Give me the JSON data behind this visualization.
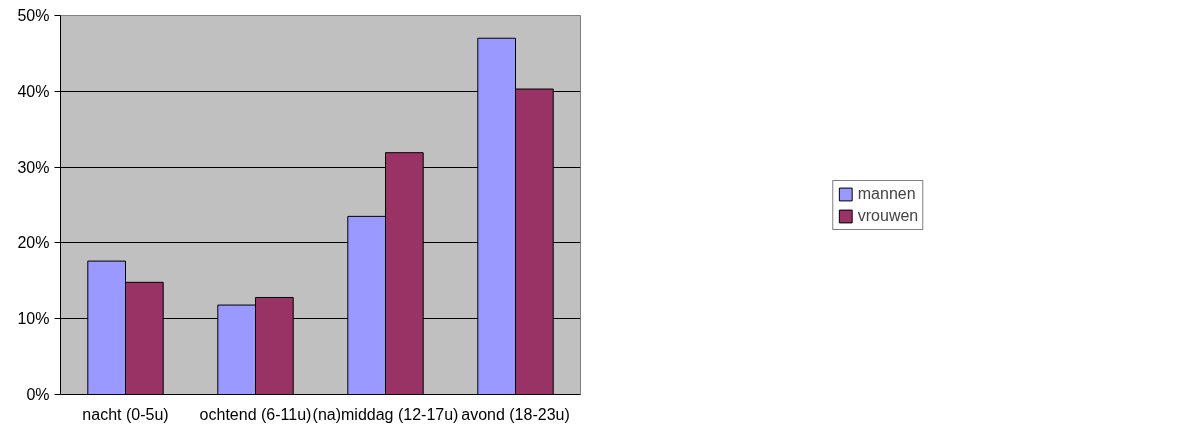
{
  "chart_data": {
    "type": "bar",
    "categories": [
      "nacht (0-5u)",
      "ochtend (6-11u)",
      "(na)middag (12-17u)",
      "avond (18-23u)"
    ],
    "series": [
      {
        "name": "mannen",
        "color": "#9999ff",
        "values": [
          17.6,
          11.8,
          23.5,
          47.0
        ]
      },
      {
        "name": "vrouwen",
        "color": "#993366",
        "values": [
          14.8,
          12.8,
          31.9,
          40.3
        ]
      }
    ],
    "ylim": [
      0,
      50
    ],
    "yticks": [
      {
        "value": 0,
        "label": "0%"
      },
      {
        "value": 10,
        "label": "10%"
      },
      {
        "value": 20,
        "label": "20%"
      },
      {
        "value": 30,
        "label": "30%"
      },
      {
        "value": 40,
        "label": "40%"
      },
      {
        "value": 50,
        "label": "50%"
      }
    ],
    "grid": "y",
    "legend": "right"
  }
}
